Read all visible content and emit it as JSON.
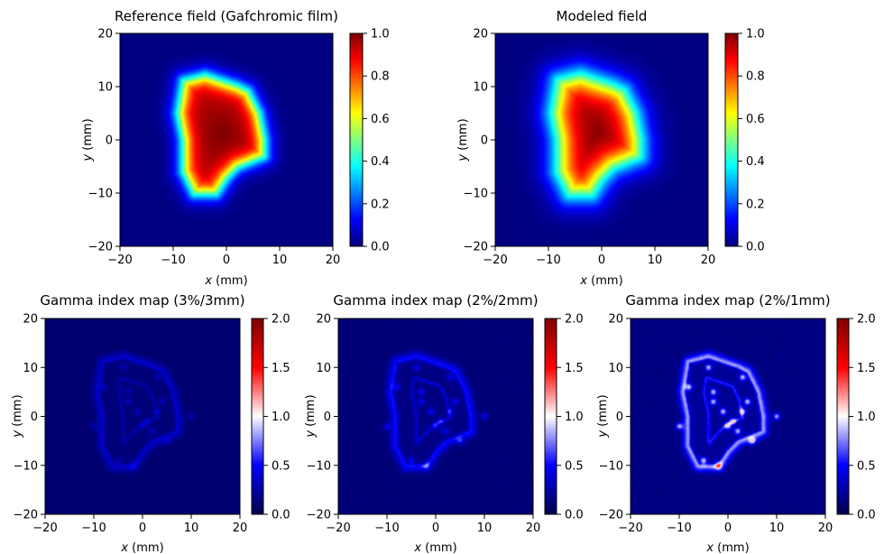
{
  "figure": {
    "panels": [
      {
        "title": "Reference field (Gafchromic film)",
        "xlabel_var": "x",
        "xlabel_unit": " (mm)",
        "ylabel_var": "y",
        "ylabel_unit": " (mm)"
      },
      {
        "title": "Modeled field",
        "xlabel_var": "x",
        "xlabel_unit": " (mm)",
        "ylabel_var": "y",
        "ylabel_unit": " (mm)"
      },
      {
        "title": "Gamma index map (3%/3mm)",
        "xlabel_var": "x",
        "xlabel_unit": " (mm)",
        "ylabel_var": "y",
        "ylabel_unit": " (mm)"
      },
      {
        "title": "Gamma index map (2%/2mm)",
        "xlabel_var": "x",
        "xlabel_unit": " (mm)",
        "ylabel_var": "y",
        "ylabel_unit": " (mm)"
      },
      {
        "title": "Gamma index map (2%/1mm)",
        "xlabel_var": "x",
        "xlabel_unit": " (mm)",
        "ylabel_var": "y",
        "ylabel_unit": " (mm)"
      }
    ]
  },
  "chart_data": [
    {
      "type": "heatmap",
      "title": "Reference field (Gafchromic film)",
      "xlabel": "x (mm)",
      "ylabel": "y (mm)",
      "xlim": [
        -20,
        20
      ],
      "ylim": [
        -20,
        20
      ],
      "xticks": [
        "−20",
        "−10",
        "0",
        "10",
        "20"
      ],
      "yticks": [
        "−20",
        "−10",
        "0",
        "10",
        "20"
      ],
      "colormap": "jet",
      "colorbar": {
        "range": [
          0,
          1
        ],
        "ticks": [
          "0.0",
          "0.2",
          "0.4",
          "0.6",
          "0.8",
          "1.0"
        ]
      },
      "field": {
        "kind": "dose",
        "peak": 1.0,
        "edge_softness": 1.0,
        "outline": [
          [
            -8,
            11
          ],
          [
            -4,
            12
          ],
          [
            2,
            10
          ],
          [
            4,
            9
          ],
          [
            6,
            5
          ],
          [
            7,
            0
          ],
          [
            7,
            -3
          ],
          [
            2,
            -5
          ],
          [
            0,
            -7
          ],
          [
            -2,
            -10
          ],
          [
            -6,
            -10
          ],
          [
            -8,
            -6
          ],
          [
            -8,
            0
          ],
          [
            -9,
            5
          ]
        ]
      }
    },
    {
      "type": "heatmap",
      "title": "Modeled field",
      "xlabel": "x (mm)",
      "ylabel": "y (mm)",
      "xlim": [
        -20,
        20
      ],
      "ylim": [
        -20,
        20
      ],
      "xticks": [
        "−20",
        "−10",
        "0",
        "10",
        "20"
      ],
      "yticks": [
        "−20",
        "−10",
        "0",
        "10",
        "20"
      ],
      "colormap": "jet",
      "colorbar": {
        "range": [
          0,
          1
        ],
        "ticks": [
          "0.0",
          "0.2",
          "0.4",
          "0.6",
          "0.8",
          "1.0"
        ]
      },
      "field": {
        "kind": "dose",
        "peak": 1.0,
        "edge_softness": 1.6,
        "outline": [
          [
            -8,
            11
          ],
          [
            -4,
            12
          ],
          [
            2,
            10
          ],
          [
            4,
            9
          ],
          [
            6,
            5
          ],
          [
            7,
            0
          ],
          [
            7,
            -3
          ],
          [
            2,
            -5
          ],
          [
            0,
            -7
          ],
          [
            -2,
            -10
          ],
          [
            -6,
            -10
          ],
          [
            -8,
            -6
          ],
          [
            -8,
            0
          ],
          [
            -9,
            5
          ]
        ]
      }
    },
    {
      "type": "heatmap",
      "title": "Gamma index map (3%/3mm)",
      "xlabel": "x (mm)",
      "ylabel": "y (mm)",
      "xlim": [
        -20,
        20
      ],
      "ylim": [
        -20,
        20
      ],
      "xticks": [
        "−20",
        "−10",
        "0",
        "10",
        "20"
      ],
      "yticks": [
        "−20",
        "−10",
        "0",
        "10",
        "20"
      ],
      "colormap": "seismic",
      "colorbar": {
        "range": [
          0,
          2
        ],
        "ticks": [
          "0.0",
          "0.5",
          "1.0",
          "1.5",
          "2.0"
        ]
      },
      "field": {
        "kind": "gamma",
        "base": 0.1,
        "ring": 0.38,
        "hot": 0.2
      }
    },
    {
      "type": "heatmap",
      "title": "Gamma index map (2%/2mm)",
      "xlabel": "x (mm)",
      "ylabel": "y (mm)",
      "xlim": [
        -20,
        20
      ],
      "ylim": [
        -20,
        20
      ],
      "xticks": [
        "−20",
        "−10",
        "0",
        "10",
        "20"
      ],
      "yticks": [
        "−20",
        "−10",
        "0",
        "10",
        "20"
      ],
      "colormap": "seismic",
      "colorbar": {
        "range": [
          0,
          2
        ],
        "ticks": [
          "0.0",
          "0.5",
          "1.0",
          "1.5",
          "2.0"
        ]
      },
      "field": {
        "kind": "gamma",
        "base": 0.12,
        "ring": 0.6,
        "hot": 0.35
      }
    },
    {
      "type": "heatmap",
      "title": "Gamma index map (2%/1mm)",
      "xlabel": "x (mm)",
      "ylabel": "y (mm)",
      "xlim": [
        -20,
        20
      ],
      "ylim": [
        -20,
        20
      ],
      "xticks": [
        "−20",
        "−10",
        "0",
        "10",
        "20"
      ],
      "yticks": [
        "−20",
        "−10",
        "0",
        "10",
        "20"
      ],
      "colormap": "seismic",
      "colorbar": {
        "range": [
          0,
          2
        ],
        "ticks": [
          "0.0",
          "0.5",
          "1.0",
          "1.5",
          "2.0"
        ]
      },
      "field": {
        "kind": "gamma",
        "base": 0.15,
        "ring": 1.0,
        "hot": 0.75
      }
    }
  ]
}
